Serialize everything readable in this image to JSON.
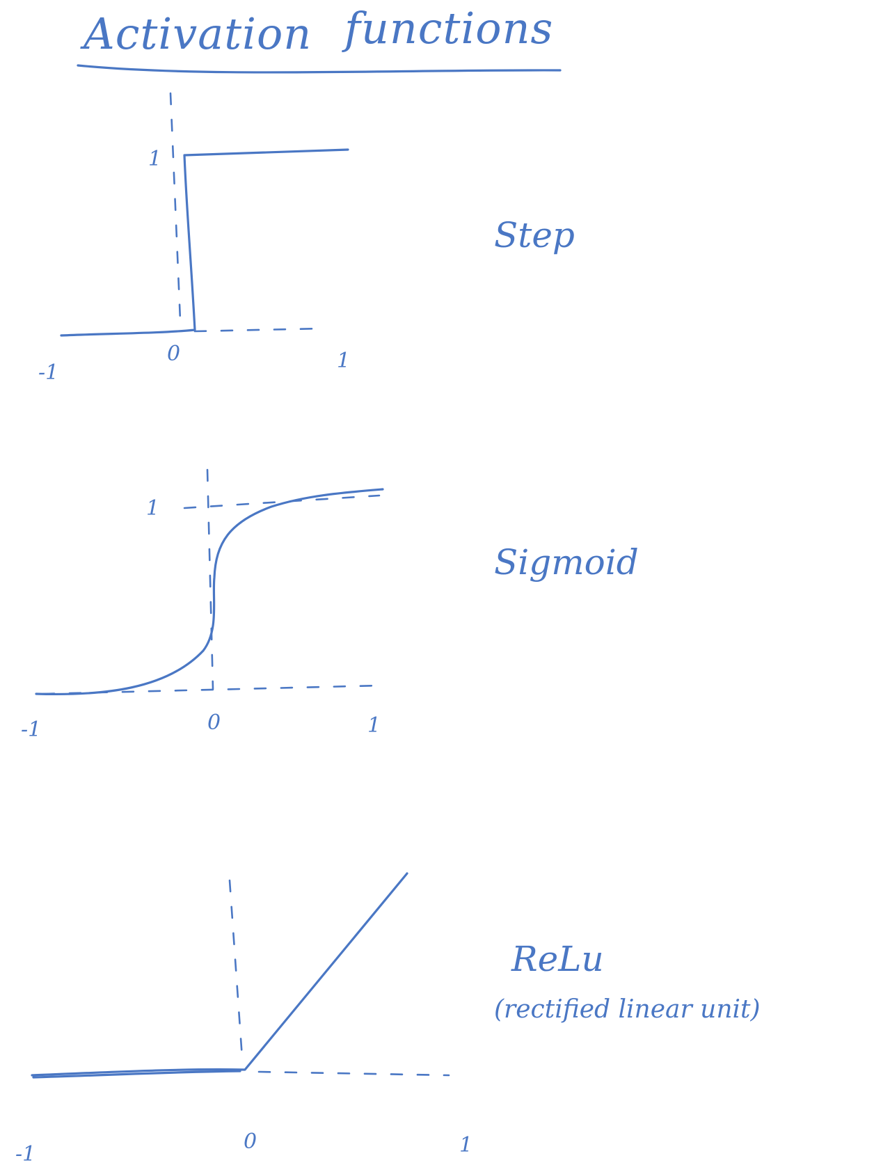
{
  "title": {
    "left": "Activation",
    "right": "functions"
  },
  "ink_color": "#4a77c4",
  "plots": [
    {
      "id": "step",
      "label": "Step",
      "sub": "",
      "ticks": {
        "x_neg": "-1",
        "x_zero": "0",
        "x_pos": "1",
        "y_top": "1"
      }
    },
    {
      "id": "sigmoid",
      "label": "Sigmoid",
      "sub": "",
      "ticks": {
        "x_neg": "-1",
        "x_zero": "0",
        "x_pos": "1",
        "y_top": "1"
      }
    },
    {
      "id": "relu",
      "label": "ReLu",
      "sub": "(rectified linear unit)",
      "ticks": {
        "x_neg": "-1",
        "x_zero": "0",
        "x_pos": "1"
      }
    }
  ]
}
